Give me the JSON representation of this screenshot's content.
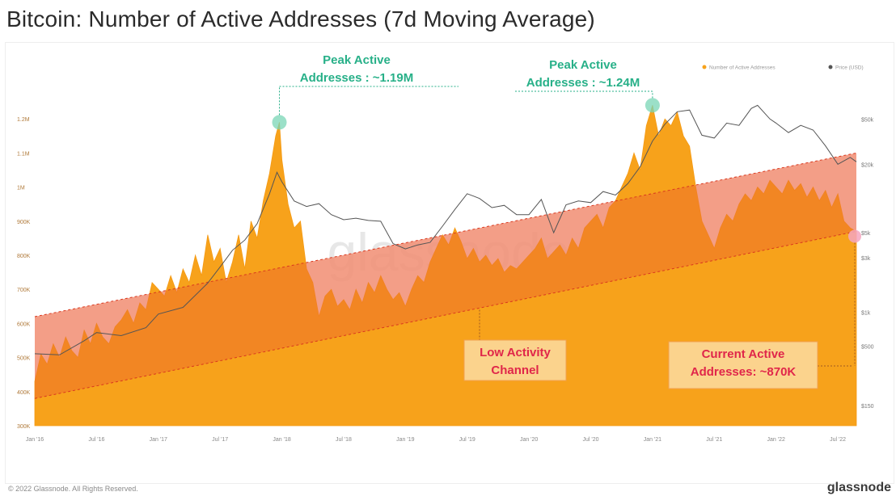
{
  "title": "Bitcoin: Number of Active Addresses (7d Moving Average)",
  "footer": {
    "copyright": "© 2022 Glassnode. All Rights Reserved.",
    "brand": "glassnode"
  },
  "colors": {
    "active_addresses": "#f7a21b",
    "channel_fill": "#ee6a2b",
    "channel_above": "#f6c3d8",
    "price_line": "#555555",
    "peak_marker": "#7ad6b5",
    "peak_text": "#27b088",
    "annotation_text": "#e0264a",
    "annotation_box": "#fbd38d",
    "annotation_border": "#f0a050",
    "current_marker": "#f4a6c0"
  },
  "chart_data": {
    "type": "area",
    "title": "Bitcoin: Number of Active Addresses (7d Moving Average)",
    "legend": [
      {
        "label": "Number of Active Addresses",
        "color": "#f7a21b",
        "position": "top-right"
      },
      {
        "label": "Price (USD)",
        "color": "#555555",
        "position": "top-right"
      }
    ],
    "x_range": [
      2016.0,
      2022.65
    ],
    "x_tick_labels": [
      {
        "x": 2016.0,
        "label": "Jan '16"
      },
      {
        "x": 2016.5,
        "label": "Jul '16"
      },
      {
        "x": 2017.0,
        "label": "Jan '17"
      },
      {
        "x": 2017.5,
        "label": "Jul '17"
      },
      {
        "x": 2018.0,
        "label": "Jan '18"
      },
      {
        "x": 2018.5,
        "label": "Jul '18"
      },
      {
        "x": 2019.0,
        "label": "Jan '19"
      },
      {
        "x": 2019.5,
        "label": "Jul '19"
      },
      {
        "x": 2020.0,
        "label": "Jan '20"
      },
      {
        "x": 2020.5,
        "label": "Jul '20"
      },
      {
        "x": 2021.0,
        "label": "Jan '21"
      },
      {
        "x": 2021.5,
        "label": "Jul '21"
      },
      {
        "x": 2022.0,
        "label": "Jan '22"
      },
      {
        "x": 2022.5,
        "label": "Jul '22"
      }
    ],
    "y_left_range": [
      300000,
      1300000
    ],
    "y_left_ticks": [
      {
        "value": 1200000,
        "label": "1.2M"
      },
      {
        "value": 1100000,
        "label": "1.1M"
      },
      {
        "value": 1000000,
        "label": "1M"
      },
      {
        "value": 900000,
        "label": "900K"
      },
      {
        "value": 800000,
        "label": "800K"
      },
      {
        "value": 700000,
        "label": "700K"
      },
      {
        "value": 600000,
        "label": "600K"
      },
      {
        "value": 500000,
        "label": "500K"
      },
      {
        "value": 400000,
        "label": "400K"
      },
      {
        "value": 300000,
        "label": "300K"
      }
    ],
    "y_right_log_range": [
      100,
      100000
    ],
    "y_right_ticks": [
      {
        "value": 50000,
        "label": "$50k"
      },
      {
        "value": 20000,
        "label": "$20k"
      },
      {
        "value": 5000,
        "label": "$5k"
      },
      {
        "value": 3000,
        "label": "$3k"
      },
      {
        "value": 1000,
        "label": "$1k"
      },
      {
        "value": 500,
        "label": "$500"
      },
      {
        "value": 150,
        "label": "$150"
      }
    ],
    "channel": {
      "lower": [
        [
          2016.0,
          380000
        ],
        [
          2022.65,
          870000
        ]
      ],
      "upper": [
        [
          2016.0,
          620000
        ],
        [
          2022.65,
          1100000
        ]
      ]
    },
    "series": [
      {
        "name": "Number of Active Addresses",
        "values": [
          [
            2016.0,
            430000
          ],
          [
            2016.05,
            510000
          ],
          [
            2016.1,
            480000
          ],
          [
            2016.15,
            540000
          ],
          [
            2016.2,
            500000
          ],
          [
            2016.25,
            560000
          ],
          [
            2016.3,
            520000
          ],
          [
            2016.35,
            500000
          ],
          [
            2016.4,
            580000
          ],
          [
            2016.45,
            540000
          ],
          [
            2016.5,
            600000
          ],
          [
            2016.55,
            560000
          ],
          [
            2016.6,
            540000
          ],
          [
            2016.65,
            590000
          ],
          [
            2016.7,
            610000
          ],
          [
            2016.75,
            640000
          ],
          [
            2016.8,
            600000
          ],
          [
            2016.85,
            660000
          ],
          [
            2016.9,
            640000
          ],
          [
            2016.95,
            720000
          ],
          [
            2017.0,
            700000
          ],
          [
            2017.05,
            680000
          ],
          [
            2017.1,
            740000
          ],
          [
            2017.15,
            690000
          ],
          [
            2017.2,
            760000
          ],
          [
            2017.25,
            720000
          ],
          [
            2017.3,
            800000
          ],
          [
            2017.35,
            740000
          ],
          [
            2017.4,
            860000
          ],
          [
            2017.45,
            780000
          ],
          [
            2017.5,
            820000
          ],
          [
            2017.55,
            720000
          ],
          [
            2017.6,
            780000
          ],
          [
            2017.65,
            860000
          ],
          [
            2017.7,
            760000
          ],
          [
            2017.75,
            900000
          ],
          [
            2017.8,
            850000
          ],
          [
            2017.85,
            960000
          ],
          [
            2017.9,
            1040000
          ],
          [
            2017.95,
            1150000
          ],
          [
            2017.98,
            1190000
          ],
          [
            2018.0,
            1080000
          ],
          [
            2018.05,
            950000
          ],
          [
            2018.1,
            880000
          ],
          [
            2018.15,
            900000
          ],
          [
            2018.2,
            760000
          ],
          [
            2018.25,
            720000
          ],
          [
            2018.3,
            620000
          ],
          [
            2018.35,
            680000
          ],
          [
            2018.4,
            700000
          ],
          [
            2018.45,
            650000
          ],
          [
            2018.5,
            670000
          ],
          [
            2018.55,
            640000
          ],
          [
            2018.6,
            700000
          ],
          [
            2018.65,
            660000
          ],
          [
            2018.7,
            720000
          ],
          [
            2018.75,
            690000
          ],
          [
            2018.8,
            740000
          ],
          [
            2018.85,
            700000
          ],
          [
            2018.9,
            670000
          ],
          [
            2018.95,
            690000
          ],
          [
            2019.0,
            650000
          ],
          [
            2019.05,
            700000
          ],
          [
            2019.1,
            740000
          ],
          [
            2019.15,
            720000
          ],
          [
            2019.2,
            780000
          ],
          [
            2019.25,
            820000
          ],
          [
            2019.3,
            860000
          ],
          [
            2019.35,
            830000
          ],
          [
            2019.4,
            880000
          ],
          [
            2019.45,
            840000
          ],
          [
            2019.5,
            790000
          ],
          [
            2019.55,
            820000
          ],
          [
            2019.6,
            780000
          ],
          [
            2019.65,
            800000
          ],
          [
            2019.7,
            770000
          ],
          [
            2019.75,
            790000
          ],
          [
            2019.8,
            750000
          ],
          [
            2019.85,
            770000
          ],
          [
            2019.9,
            760000
          ],
          [
            2019.95,
            780000
          ],
          [
            2020.0,
            800000
          ],
          [
            2020.05,
            820000
          ],
          [
            2020.1,
            850000
          ],
          [
            2020.15,
            790000
          ],
          [
            2020.2,
            810000
          ],
          [
            2020.25,
            830000
          ],
          [
            2020.3,
            800000
          ],
          [
            2020.35,
            850000
          ],
          [
            2020.4,
            820000
          ],
          [
            2020.45,
            880000
          ],
          [
            2020.5,
            900000
          ],
          [
            2020.55,
            920000
          ],
          [
            2020.6,
            880000
          ],
          [
            2020.65,
            940000
          ],
          [
            2020.7,
            960000
          ],
          [
            2020.75,
            1000000
          ],
          [
            2020.8,
            1040000
          ],
          [
            2020.85,
            1100000
          ],
          [
            2020.9,
            1050000
          ],
          [
            2020.95,
            1180000
          ],
          [
            2021.0,
            1240000
          ],
          [
            2021.05,
            1150000
          ],
          [
            2021.1,
            1200000
          ],
          [
            2021.15,
            1180000
          ],
          [
            2021.2,
            1220000
          ],
          [
            2021.25,
            1150000
          ],
          [
            2021.3,
            1120000
          ],
          [
            2021.35,
            1000000
          ],
          [
            2021.4,
            900000
          ],
          [
            2021.45,
            860000
          ],
          [
            2021.5,
            820000
          ],
          [
            2021.55,
            880000
          ],
          [
            2021.6,
            920000
          ],
          [
            2021.65,
            900000
          ],
          [
            2021.7,
            950000
          ],
          [
            2021.75,
            980000
          ],
          [
            2021.8,
            960000
          ],
          [
            2021.85,
            1000000
          ],
          [
            2021.9,
            980000
          ],
          [
            2021.95,
            1020000
          ],
          [
            2022.0,
            1000000
          ],
          [
            2022.05,
            980000
          ],
          [
            2022.1,
            1020000
          ],
          [
            2022.15,
            990000
          ],
          [
            2022.2,
            1010000
          ],
          [
            2022.25,
            970000
          ],
          [
            2022.3,
            1000000
          ],
          [
            2022.35,
            960000
          ],
          [
            2022.4,
            990000
          ],
          [
            2022.45,
            940000
          ],
          [
            2022.5,
            980000
          ],
          [
            2022.55,
            900000
          ],
          [
            2022.6,
            880000
          ],
          [
            2022.65,
            870000
          ]
        ]
      },
      {
        "name": "Price (USD)",
        "axis": "right",
        "values": [
          [
            2016.0,
            430
          ],
          [
            2016.2,
            420
          ],
          [
            2016.4,
            560
          ],
          [
            2016.5,
            660
          ],
          [
            2016.7,
            620
          ],
          [
            2016.9,
            730
          ],
          [
            2017.0,
            960
          ],
          [
            2017.2,
            1100
          ],
          [
            2017.4,
            1800
          ],
          [
            2017.5,
            2500
          ],
          [
            2017.6,
            3500
          ],
          [
            2017.7,
            4300
          ],
          [
            2017.8,
            6000
          ],
          [
            2017.9,
            11000
          ],
          [
            2017.96,
            17000
          ],
          [
            2018.0,
            14000
          ],
          [
            2018.1,
            9500
          ],
          [
            2018.2,
            8500
          ],
          [
            2018.3,
            9000
          ],
          [
            2018.4,
            7200
          ],
          [
            2018.5,
            6500
          ],
          [
            2018.6,
            6700
          ],
          [
            2018.7,
            6400
          ],
          [
            2018.8,
            6300
          ],
          [
            2018.9,
            4000
          ],
          [
            2019.0,
            3600
          ],
          [
            2019.1,
            3900
          ],
          [
            2019.2,
            4100
          ],
          [
            2019.3,
            5700
          ],
          [
            2019.4,
            8000
          ],
          [
            2019.5,
            11000
          ],
          [
            2019.55,
            10500
          ],
          [
            2019.6,
            10000
          ],
          [
            2019.7,
            8300
          ],
          [
            2019.8,
            8700
          ],
          [
            2019.9,
            7200
          ],
          [
            2020.0,
            7200
          ],
          [
            2020.1,
            9800
          ],
          [
            2020.2,
            5000
          ],
          [
            2020.3,
            8800
          ],
          [
            2020.4,
            9500
          ],
          [
            2020.5,
            9200
          ],
          [
            2020.6,
            11500
          ],
          [
            2020.7,
            10700
          ],
          [
            2020.8,
            13500
          ],
          [
            2020.9,
            19000
          ],
          [
            2021.0,
            32000
          ],
          [
            2021.1,
            45000
          ],
          [
            2021.2,
            58000
          ],
          [
            2021.3,
            60000
          ],
          [
            2021.4,
            36000
          ],
          [
            2021.5,
            34000
          ],
          [
            2021.6,
            46000
          ],
          [
            2021.7,
            44000
          ],
          [
            2021.8,
            62000
          ],
          [
            2021.85,
            66000
          ],
          [
            2021.95,
            50000
          ],
          [
            2022.0,
            46000
          ],
          [
            2022.1,
            38000
          ],
          [
            2022.2,
            44000
          ],
          [
            2022.3,
            40000
          ],
          [
            2022.4,
            29000
          ],
          [
            2022.5,
            20000
          ],
          [
            2022.6,
            23000
          ],
          [
            2022.65,
            21000
          ]
        ]
      }
    ],
    "annotations": [
      {
        "key": "peak1",
        "label_lines": [
          "Peak Active",
          "Addresses : ~1.19M"
        ],
        "x": 2017.98,
        "y": 1190000
      },
      {
        "key": "peak2",
        "label_lines": [
          "Peak Active",
          "Addresses : ~1.24M"
        ],
        "x": 2021.0,
        "y": 1240000
      },
      {
        "key": "low",
        "label_lines": [
          "Low Activity",
          "Channel"
        ],
        "x": 2019.6,
        "y": 640000
      },
      {
        "key": "current",
        "label_lines": [
          "Current Active",
          "Addresses: ~870K"
        ],
        "x": 2022.65,
        "y": 870000
      }
    ],
    "watermark": "glassnode"
  }
}
